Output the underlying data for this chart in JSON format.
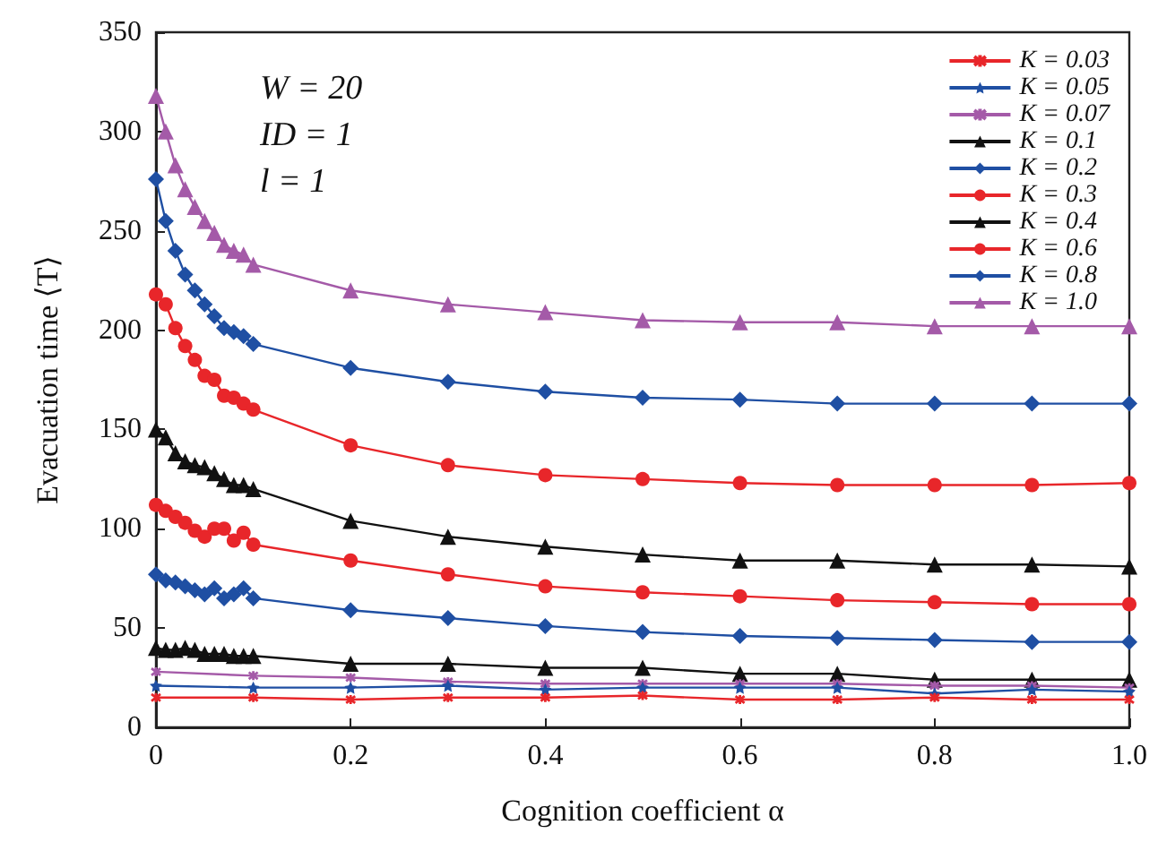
{
  "chart_data": {
    "type": "line",
    "xlabel": "Cognition coefficient α",
    "ylabel": "Evacuation time ⟨T⟩",
    "annotations": [
      "W = 20",
      "ID = 1",
      "l = 1"
    ],
    "xlim": [
      0,
      1
    ],
    "xticks": [
      0,
      0.2,
      0.4,
      0.6,
      0.8,
      {
        "value": 1,
        "label": "1.0"
      }
    ],
    "ylim": [
      0,
      350
    ],
    "yticks": [
      0,
      50,
      100,
      150,
      200,
      250,
      300,
      350
    ],
    "grid": false,
    "legend": "top right",
    "line_style": "solid",
    "series": [
      {
        "name": "K = 0.03",
        "color": "#e8262a",
        "marker": "cross",
        "x": [
          0,
          0.1,
          0.2,
          0.3,
          0.4,
          0.5,
          0.6,
          0.7,
          0.8,
          0.9,
          1.0
        ],
        "values": [
          15,
          15,
          14,
          15,
          15,
          16,
          14,
          14,
          15,
          14,
          14
        ]
      },
      {
        "name": "K = 0.05",
        "color": "#1f4fa3",
        "marker": "star",
        "x": [
          0,
          0.1,
          0.2,
          0.3,
          0.4,
          0.5,
          0.6,
          0.7,
          0.8,
          0.9,
          1.0
        ],
        "values": [
          21,
          20,
          20,
          21,
          19,
          20,
          20,
          20,
          17,
          19,
          18
        ]
      },
      {
        "name": "K = 0.07",
        "color": "#a45aa8",
        "marker": "cross",
        "x": [
          0,
          0.1,
          0.2,
          0.3,
          0.4,
          0.5,
          0.6,
          0.7,
          0.8,
          0.9,
          1.0
        ],
        "values": [
          28,
          26,
          25,
          23,
          22,
          22,
          22,
          22,
          21,
          21,
          20
        ]
      },
      {
        "name": "K = 0.1",
        "color": "#111111",
        "marker": "triangle",
        "x": [
          0,
          0.01,
          0.02,
          0.03,
          0.04,
          0.05,
          0.06,
          0.07,
          0.08,
          0.09,
          0.1,
          0.2,
          0.3,
          0.4,
          0.5,
          0.6,
          0.7,
          0.8,
          0.9,
          1.0
        ],
        "values": [
          40,
          39,
          39,
          40,
          39,
          37,
          37,
          37,
          36,
          36,
          36,
          32,
          32,
          30,
          30,
          27,
          27,
          24,
          24,
          24
        ]
      },
      {
        "name": "K = 0.2",
        "color": "#1f4fa3",
        "marker": "diamond",
        "x": [
          0,
          0.01,
          0.02,
          0.03,
          0.04,
          0.05,
          0.06,
          0.07,
          0.08,
          0.09,
          0.1,
          0.2,
          0.3,
          0.4,
          0.5,
          0.6,
          0.7,
          0.8,
          0.9,
          1.0
        ],
        "values": [
          77,
          74,
          73,
          71,
          69,
          67,
          70,
          65,
          67,
          70,
          65,
          59,
          55,
          51,
          48,
          46,
          45,
          44,
          43,
          43
        ]
      },
      {
        "name": "K = 0.3",
        "color": "#e8262a",
        "marker": "circle",
        "x": [
          0,
          0.01,
          0.02,
          0.03,
          0.04,
          0.05,
          0.06,
          0.07,
          0.08,
          0.09,
          0.1,
          0.2,
          0.3,
          0.4,
          0.5,
          0.6,
          0.7,
          0.8,
          0.9,
          1.0
        ],
        "values": [
          112,
          109,
          106,
          103,
          99,
          96,
          100,
          100,
          94,
          98,
          92,
          84,
          77,
          71,
          68,
          66,
          64,
          63,
          62,
          62
        ]
      },
      {
        "name": "K = 0.4",
        "color": "#111111",
        "marker": "triangle",
        "x": [
          0,
          0.01,
          0.02,
          0.03,
          0.04,
          0.05,
          0.06,
          0.07,
          0.08,
          0.09,
          0.1,
          0.2,
          0.3,
          0.4,
          0.5,
          0.6,
          0.7,
          0.8,
          0.9,
          1.0
        ],
        "values": [
          150,
          146,
          138,
          134,
          132,
          131,
          128,
          125,
          122,
          122,
          120,
          104,
          96,
          91,
          87,
          84,
          84,
          82,
          82,
          81
        ]
      },
      {
        "name": "K = 0.6",
        "color": "#e8262a",
        "marker": "circle",
        "x": [
          0,
          0.01,
          0.02,
          0.03,
          0.04,
          0.05,
          0.06,
          0.07,
          0.08,
          0.09,
          0.1,
          0.2,
          0.3,
          0.4,
          0.5,
          0.6,
          0.7,
          0.8,
          0.9,
          1.0
        ],
        "values": [
          218,
          213,
          201,
          192,
          185,
          177,
          175,
          167,
          166,
          163,
          160,
          142,
          132,
          127,
          125,
          123,
          122,
          122,
          122,
          123
        ]
      },
      {
        "name": "K = 0.8",
        "color": "#1f4fa3",
        "marker": "diamond",
        "x": [
          0,
          0.01,
          0.02,
          0.03,
          0.04,
          0.05,
          0.06,
          0.07,
          0.08,
          0.09,
          0.1,
          0.2,
          0.3,
          0.4,
          0.5,
          0.6,
          0.7,
          0.8,
          0.9,
          1.0
        ],
        "values": [
          276,
          255,
          240,
          228,
          220,
          213,
          207,
          201,
          199,
          197,
          193,
          181,
          174,
          169,
          166,
          165,
          163,
          163,
          163,
          163
        ]
      },
      {
        "name": "K = 1.0",
        "color": "#a45aa8",
        "marker": "triangle",
        "x": [
          0,
          0.01,
          0.02,
          0.03,
          0.04,
          0.05,
          0.06,
          0.07,
          0.08,
          0.09,
          0.1,
          0.2,
          0.3,
          0.4,
          0.5,
          0.6,
          0.7,
          0.8,
          0.9,
          1.0
        ],
        "values": [
          318,
          300,
          283,
          271,
          262,
          255,
          249,
          243,
          240,
          238,
          233,
          220,
          213,
          209,
          205,
          204,
          204,
          202,
          202,
          202
        ]
      }
    ]
  }
}
